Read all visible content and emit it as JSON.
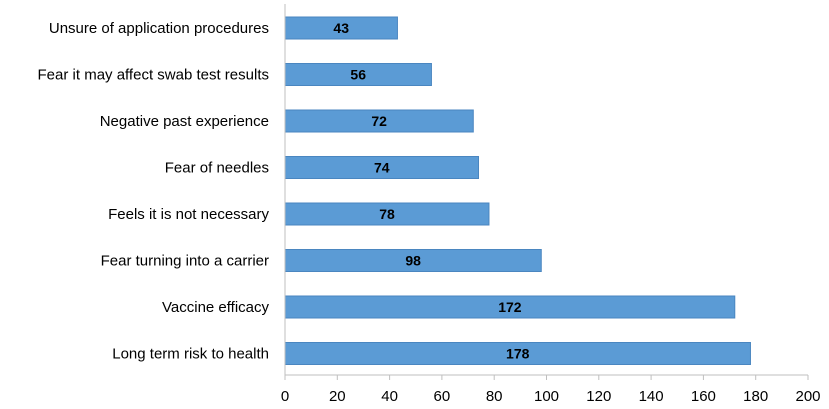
{
  "chart_data": {
    "type": "bar",
    "orientation": "horizontal",
    "categories": [
      "Unsure of application procedures",
      "Fear it may affect swab test results",
      "Negative past experience",
      "Fear of needles",
      "Feels it is not necessary",
      "Fear turning into a carrier",
      "Vaccine efficacy",
      "Long term risk to health"
    ],
    "values": [
      43,
      56,
      72,
      74,
      78,
      98,
      172,
      178
    ],
    "data_labels": [
      "43",
      "56",
      "72",
      "74",
      "78",
      "98",
      "172",
      "178"
    ],
    "title": "",
    "xlabel": "",
    "ylabel": "",
    "xlim": [
      0,
      200
    ],
    "xticks": [
      "0",
      "20",
      "40",
      "60",
      "80",
      "100",
      "120",
      "140",
      "160",
      "180",
      "200"
    ],
    "grid": false,
    "legend": "none",
    "colors": {
      "bar": "#5b9bd5",
      "bar_edge": "#4a86c0",
      "axis": "#bfbfbf"
    }
  }
}
